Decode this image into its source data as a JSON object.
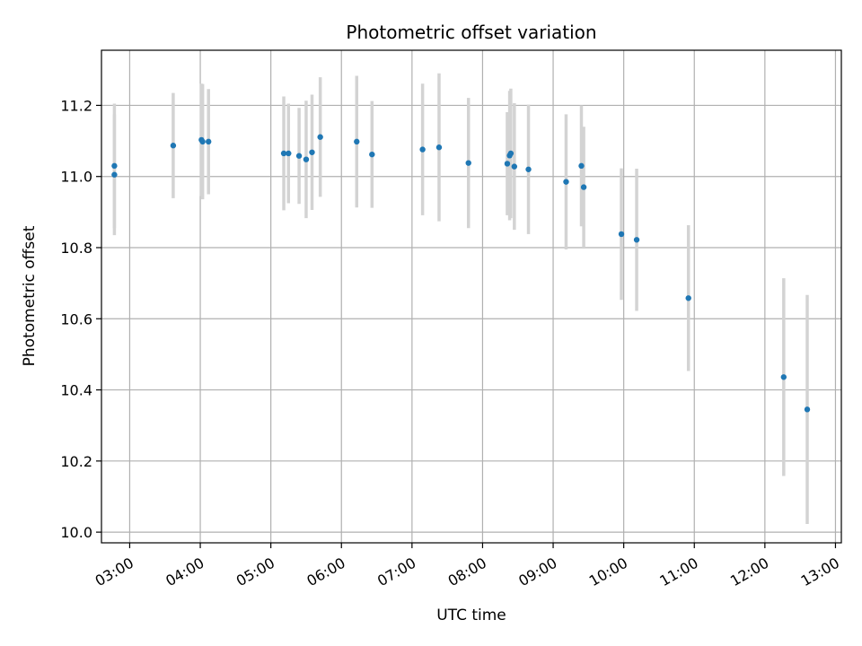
{
  "chart_data": {
    "type": "scatter",
    "title": "Photometric offset variation",
    "xlabel": "UTC time",
    "ylabel": "Photometric offset",
    "x_unit": "UTC time (HH:MM)",
    "xlim": [
      "02:36",
      "13:05"
    ],
    "ylim": [
      9.97,
      11.355
    ],
    "x_ticks": [
      "03:00",
      "04:00",
      "05:00",
      "06:00",
      "07:00",
      "08:00",
      "09:00",
      "10:00",
      "11:00",
      "12:00",
      "13:00"
    ],
    "y_ticks": [
      10.0,
      10.2,
      10.4,
      10.6,
      10.8,
      11.0,
      11.2
    ],
    "y_tick_labels": [
      "10.0",
      "10.2",
      "10.4",
      "10.6",
      "10.8",
      "11.0",
      "11.2"
    ],
    "grid": true,
    "marker_color": "#1f77b4",
    "errorbar_color": "#d3d3d3",
    "points": [
      {
        "x": "02:47",
        "y": 11.03,
        "err": 0.175
      },
      {
        "x": "02:47",
        "y": 11.005,
        "err": 0.17
      },
      {
        "x": "03:37",
        "y": 11.087,
        "err": 0.148
      },
      {
        "x": "04:01",
        "y": 11.103,
        "err": 0.158
      },
      {
        "x": "04:02",
        "y": 11.098,
        "err": 0.162
      },
      {
        "x": "04:07",
        "y": 11.098,
        "err": 0.148
      },
      {
        "x": "05:11",
        "y": 11.065,
        "err": 0.16
      },
      {
        "x": "05:15",
        "y": 11.065,
        "err": 0.14
      },
      {
        "x": "05:24",
        "y": 11.058,
        "err": 0.135
      },
      {
        "x": "05:30",
        "y": 11.048,
        "err": 0.165
      },
      {
        "x": "05:35",
        "y": 11.068,
        "err": 0.162
      },
      {
        "x": "05:42",
        "y": 11.111,
        "err": 0.168
      },
      {
        "x": "06:13",
        "y": 11.098,
        "err": 0.185
      },
      {
        "x": "06:26",
        "y": 11.062,
        "err": 0.15
      },
      {
        "x": "07:09",
        "y": 11.076,
        "err": 0.185
      },
      {
        "x": "07:23",
        "y": 11.082,
        "err": 0.208
      },
      {
        "x": "07:48",
        "y": 11.038,
        "err": 0.183
      },
      {
        "x": "08:21",
        "y": 11.036,
        "err": 0.145
      },
      {
        "x": "08:23",
        "y": 11.059,
        "err": 0.182
      },
      {
        "x": "08:24",
        "y": 11.065,
        "err": 0.182
      },
      {
        "x": "08:27",
        "y": 11.028,
        "err": 0.178
      },
      {
        "x": "08:39",
        "y": 11.02,
        "err": 0.182
      },
      {
        "x": "09:11",
        "y": 10.985,
        "err": 0.19
      },
      {
        "x": "09:24",
        "y": 11.03,
        "err": 0.17
      },
      {
        "x": "09:26",
        "y": 10.97,
        "err": 0.17
      },
      {
        "x": "09:58",
        "y": 10.838,
        "err": 0.185
      },
      {
        "x": "10:11",
        "y": 10.822,
        "err": 0.2
      },
      {
        "x": "10:55",
        "y": 10.658,
        "err": 0.205
      },
      {
        "x": "12:16",
        "y": 10.436,
        "err": 0.278
      },
      {
        "x": "12:36",
        "y": 10.345,
        "err": 0.322
      }
    ]
  }
}
